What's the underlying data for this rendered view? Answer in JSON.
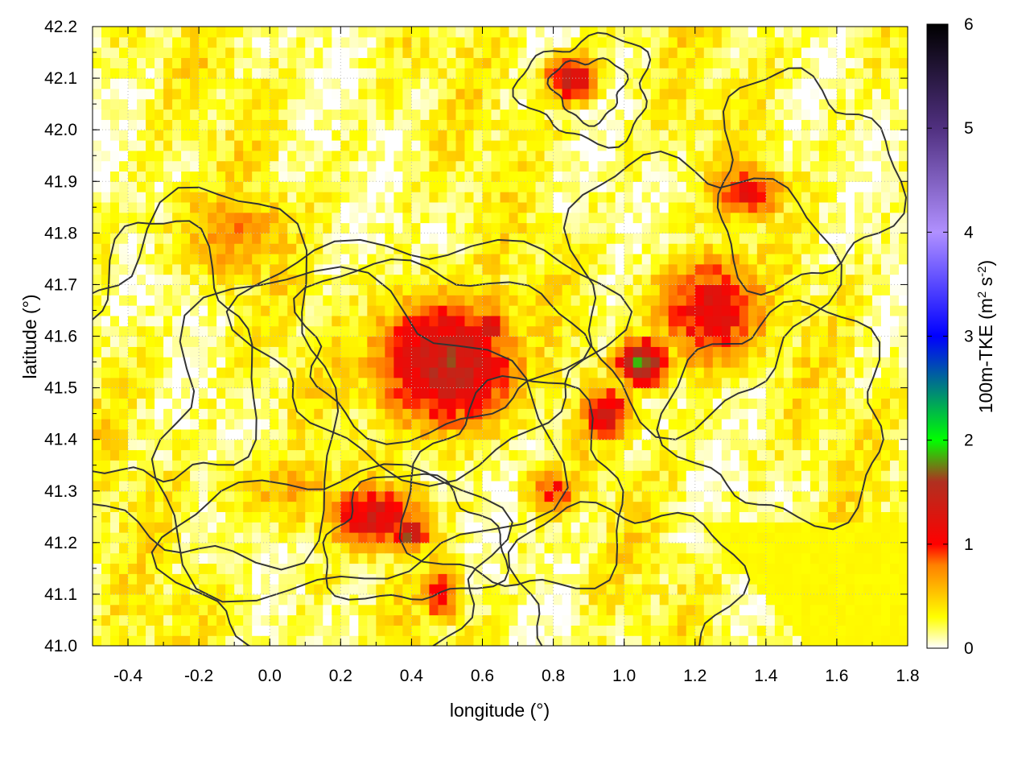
{
  "chart_data": {
    "type": "heatmap",
    "title": "",
    "xlabel": "longitude (°)",
    "ylabel": "latitude (°)",
    "colorbar_label_base": "100m-TKE (m",
    "colorbar_label_sup1": "2",
    "colorbar_label_mid": " s",
    "colorbar_label_sup2": "-2",
    "colorbar_label_end": ")",
    "xlim": [
      -0.5,
      1.8
    ],
    "ylim": [
      41.0,
      42.2
    ],
    "xticks": [
      -0.4,
      -0.2,
      0.0,
      0.2,
      0.4,
      0.6,
      0.8,
      1.0,
      1.2,
      1.4,
      1.6,
      1.8
    ],
    "xtick_labels": [
      "-0.4",
      "-0.2",
      "0.0",
      "0.2",
      "0.4",
      "0.6",
      "0.8",
      "1.0",
      "1.2",
      "1.4",
      "1.6",
      "1.8"
    ],
    "yticks": [
      41.0,
      41.1,
      41.2,
      41.3,
      41.4,
      41.5,
      41.6,
      41.7,
      41.8,
      41.9,
      42.0,
      42.1,
      42.2
    ],
    "ytick_labels": [
      "41.0",
      "41.1",
      "41.2",
      "41.3",
      "41.4",
      "41.5",
      "41.6",
      "41.7",
      "41.8",
      "41.9",
      "42.0",
      "42.1",
      "42.2"
    ],
    "colorbar_range": [
      0,
      6
    ],
    "colorbar_ticks": [
      0,
      1,
      2,
      3,
      4,
      5,
      6
    ],
    "colorbar_tick_labels": [
      "0",
      "1",
      "2",
      "3",
      "4",
      "5",
      "6"
    ],
    "colormap": [
      [
        0.0,
        "#ffffff"
      ],
      [
        0.3,
        "#ffff00"
      ],
      [
        0.8,
        "#ff8000"
      ],
      [
        1.0,
        "#ff0000"
      ],
      [
        1.6,
        "#b03020"
      ],
      [
        2.0,
        "#00ff00"
      ],
      [
        3.0,
        "#0000ff"
      ],
      [
        4.0,
        "#b090ff"
      ],
      [
        5.0,
        "#503080"
      ],
      [
        6.0,
        "#000000"
      ]
    ],
    "grid": true,
    "field_hotspots": [
      {
        "lon": 0.5,
        "lat": 41.55,
        "tke": 1.5,
        "sx": 0.22,
        "sy": 0.14
      },
      {
        "lon": 0.62,
        "lat": 41.62,
        "tke": 1.6,
        "sx": 0.05,
        "sy": 0.03
      },
      {
        "lon": 1.05,
        "lat": 41.55,
        "tke": 1.8,
        "sx": 0.08,
        "sy": 0.05
      },
      {
        "lon": 1.25,
        "lat": 41.65,
        "tke": 1.2,
        "sx": 0.18,
        "sy": 0.12
      },
      {
        "lon": 1.35,
        "lat": 41.88,
        "tke": 1.1,
        "sx": 0.12,
        "sy": 0.06
      },
      {
        "lon": 0.3,
        "lat": 41.25,
        "tke": 1.3,
        "sx": 0.15,
        "sy": 0.07
      },
      {
        "lon": 0.4,
        "lat": 41.22,
        "tke": 1.8,
        "sx": 0.05,
        "sy": 0.03
      },
      {
        "lon": 0.48,
        "lat": 41.1,
        "tke": 1.1,
        "sx": 0.06,
        "sy": 0.06
      },
      {
        "lon": 0.85,
        "lat": 42.1,
        "tke": 1.4,
        "sx": 0.08,
        "sy": 0.05
      },
      {
        "lon": 0.95,
        "lat": 41.45,
        "tke": 1.3,
        "sx": 0.08,
        "sy": 0.06
      },
      {
        "lon": -0.1,
        "lat": 41.8,
        "tke": 0.7,
        "sx": 0.2,
        "sy": 0.12
      },
      {
        "lon": 0.8,
        "lat": 41.3,
        "tke": 1.0,
        "sx": 0.08,
        "sy": 0.05
      },
      {
        "lon": 0.05,
        "lat": 41.3,
        "tke": 0.6,
        "sx": 0.2,
        "sy": 0.08
      }
    ]
  }
}
